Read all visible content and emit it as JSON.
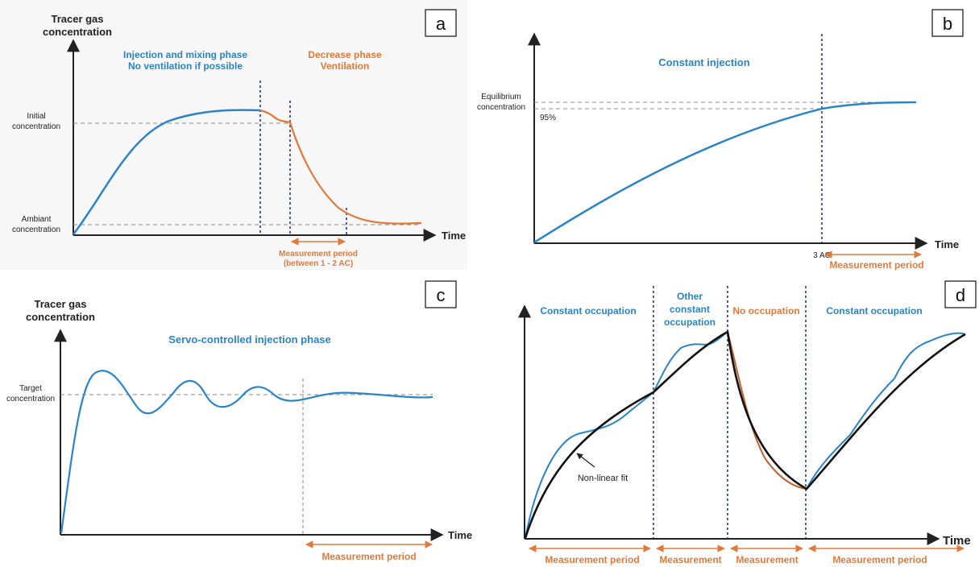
{
  "colors": {
    "blue": "#2b84c6",
    "orange": "#e07a3c",
    "black": "#111111",
    "axis": "#222222",
    "dashed": "#888888",
    "divider": "#1f2a6b",
    "fit_orange": "#c0622f"
  },
  "panel_a": {
    "tag": "a",
    "y_axis_label_line1": "Tracer gas",
    "y_axis_label_line2": "concentration",
    "x_axis_label": "Time",
    "phase1_line1": "Injection and mixing phase",
    "phase1_line2": "No ventilation if possible",
    "phase2_line1": "Decrease phase",
    "phase2_line2": "Ventilation",
    "initial_line1": "Initial",
    "initial_line2": "concentration",
    "ambient_line1": "Ambiant",
    "ambient_line2": "concentration",
    "measure_line1": "Measurement period",
    "measure_line2": "(between 1 - 2 AC)"
  },
  "panel_b": {
    "tag": "b",
    "x_axis_label": "Time",
    "title": "Constant injection",
    "equilibrium_line1": "Equilibrium",
    "equilibrium_line2": "concentration",
    "percent": "95%",
    "ac_label": "3 AC",
    "measure": "Measurement period"
  },
  "panel_c": {
    "tag": "c",
    "y_axis_label_line1": "Tracer gas",
    "y_axis_label_line2": "concentration",
    "x_axis_label": "Time",
    "title": "Servo-controlled injection phase",
    "target_line1": "Target",
    "target_line2": "concentration",
    "measure": "Measurement period"
  },
  "panel_d": {
    "tag": "d",
    "x_axis_label": "Time",
    "seg1": "Constant occupation",
    "seg2_line1": "Other",
    "seg2_line2": "constant",
    "seg2_line3": "occupation",
    "seg3": "No occupation",
    "seg4": "Constant occupation",
    "fit_label": "Non-linear fit",
    "measure1": "Measurement period",
    "measure2": "Measurement",
    "measure3": "Measurement",
    "measure4": "Measurement period"
  }
}
